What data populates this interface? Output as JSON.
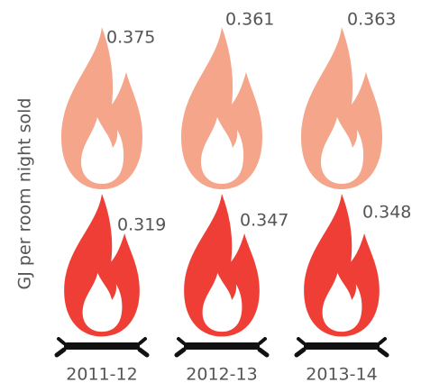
{
  "chart_data": {
    "type": "pictogram",
    "y_label": "GJ per room night sold",
    "categories": [
      "2011-12",
      "2012-13",
      "2013-14"
    ],
    "series": [
      {
        "color": "#f4a58a",
        "values": [
          0.375,
          0.361,
          0.363
        ]
      },
      {
        "color": "#ee3e36",
        "values": [
          0.319,
          0.347,
          0.348
        ]
      }
    ]
  }
}
